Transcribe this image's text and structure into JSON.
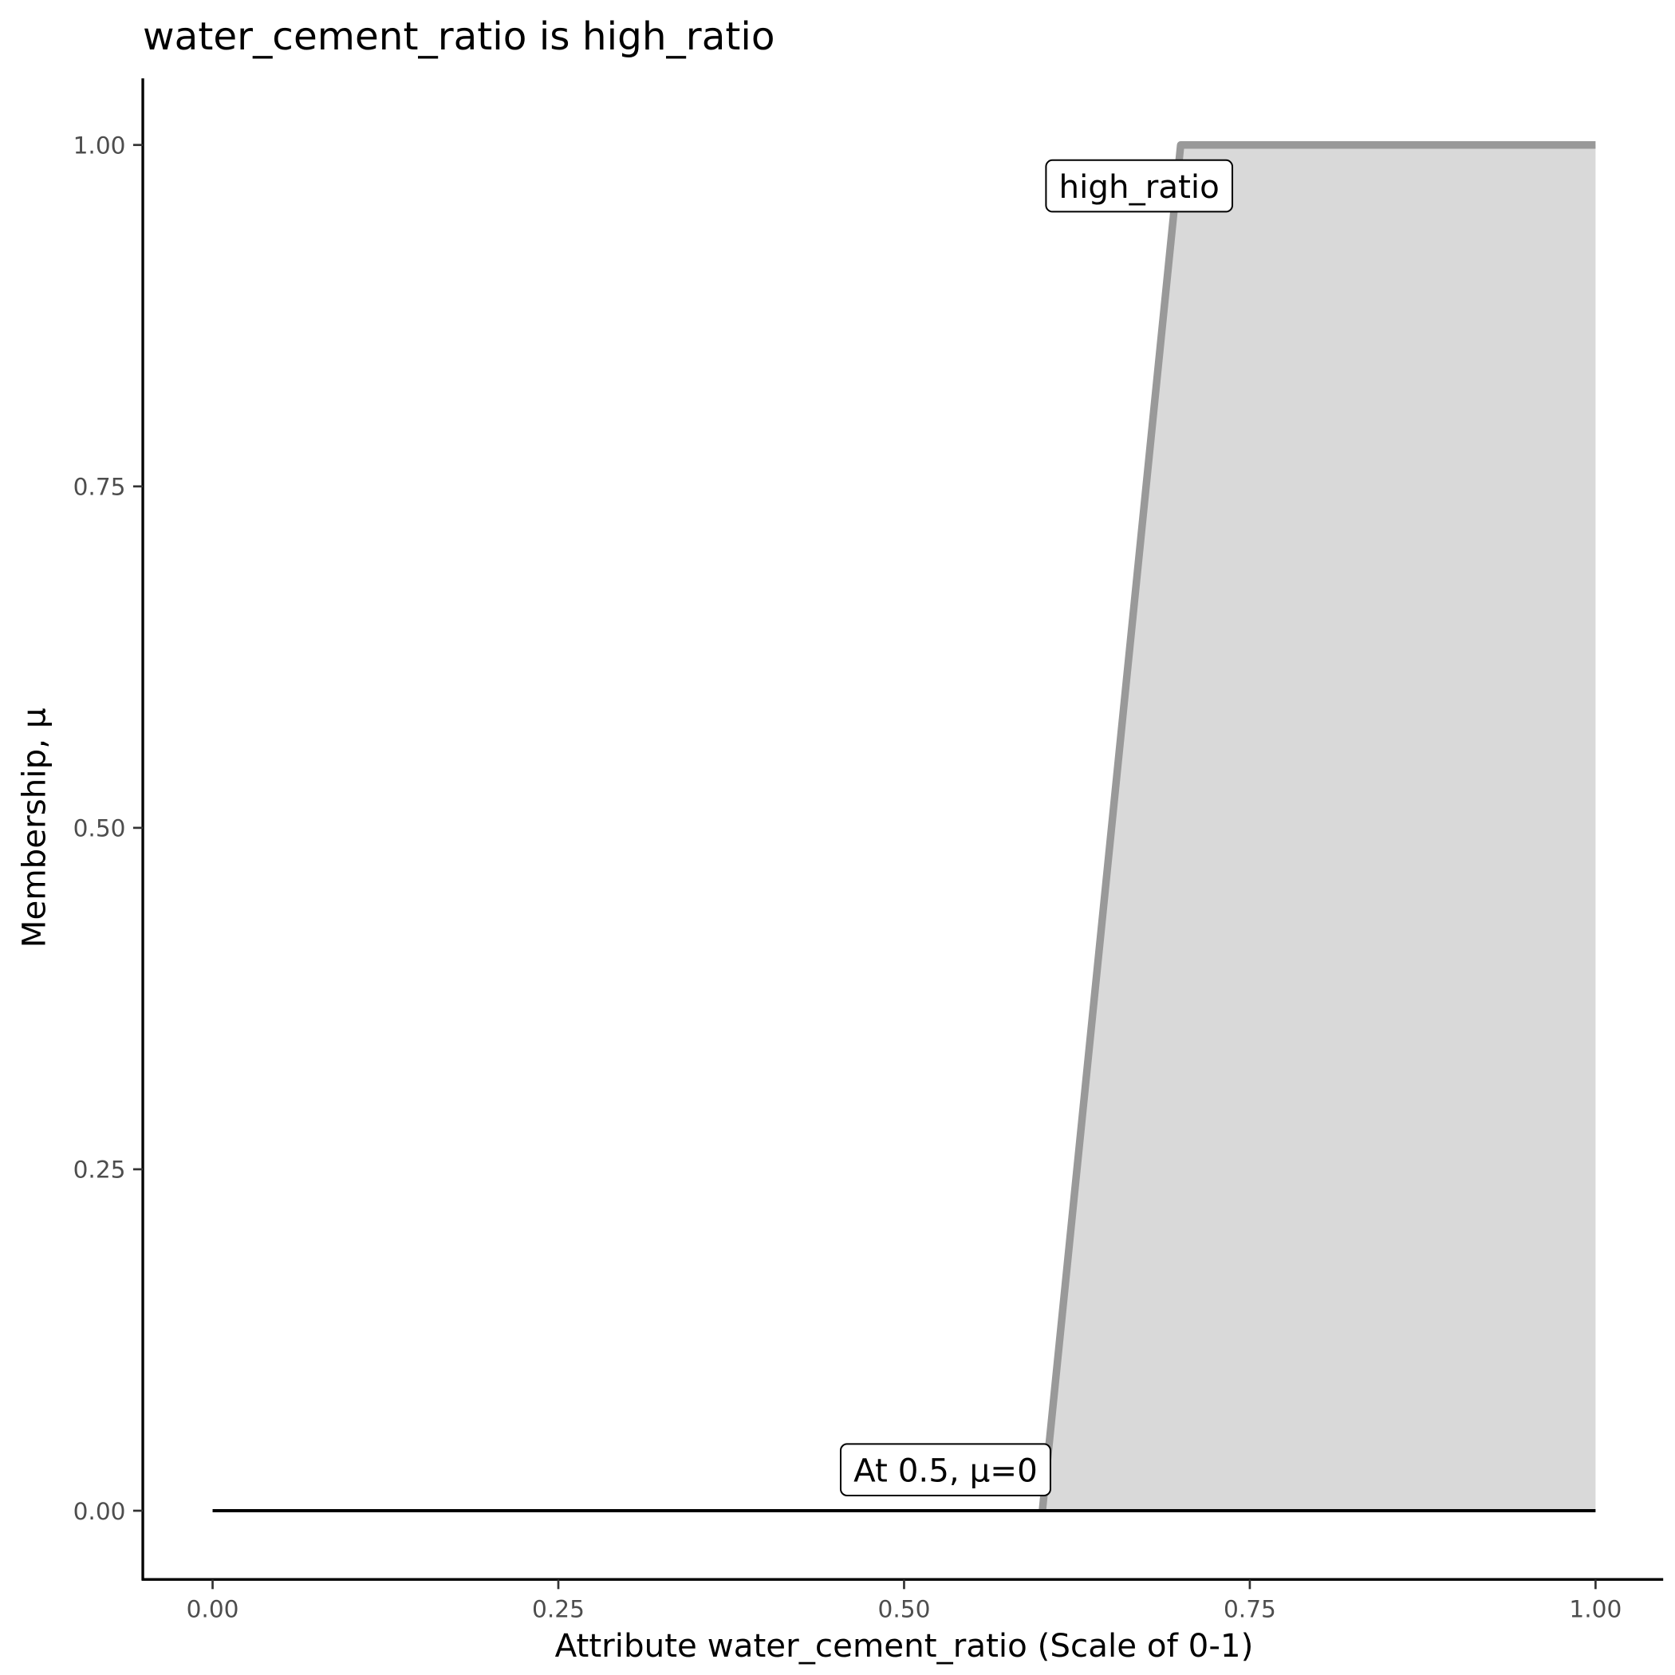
{
  "chart_data": {
    "type": "area",
    "title": "water_cement_ratio is high_ratio",
    "xlabel": "Attribute water_cement_ratio (Scale of 0-1)",
    "ylabel": "Membership, μ",
    "xlim": [
      0,
      1
    ],
    "ylim": [
      0,
      1
    ],
    "x_ticks": [
      "0.00",
      "0.25",
      "0.50",
      "0.75",
      "1.00"
    ],
    "y_ticks": [
      "0.00",
      "0.25",
      "0.50",
      "0.75",
      "1.00"
    ],
    "grid": false,
    "series": [
      {
        "name": "high_ratio",
        "x": [
          0.6,
          0.7,
          1.0
        ],
        "y": [
          0,
          1,
          1
        ],
        "color": "#999999",
        "fill": "#d9d9d9"
      }
    ],
    "evaluation_line": {
      "x": [
        0,
        1
      ],
      "y": [
        0,
        0
      ],
      "color": "#000000"
    },
    "annotations": [
      {
        "text": "high_ratio",
        "x": 0.67,
        "y": 0.97
      },
      {
        "text": "At 0.5, μ=0",
        "x": 0.53,
        "y": 0.03
      }
    ]
  }
}
